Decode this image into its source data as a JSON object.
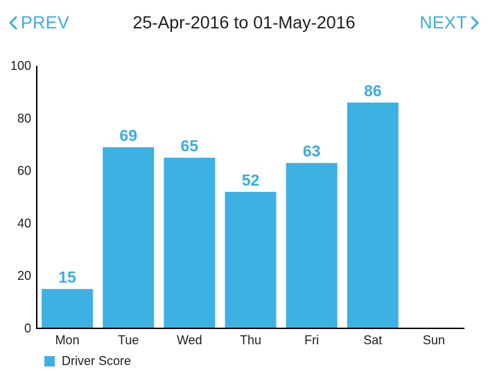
{
  "header": {
    "prev_label": "PREV",
    "next_label": "NEXT",
    "title": "25-Apr-2016 to 01-May-2016"
  },
  "colors": {
    "bar": "#3eb1e3",
    "value_label": "#3aace0",
    "accent": "#3aace0",
    "text": "#1f1f1f",
    "axis": "#000000"
  },
  "chart_data": {
    "type": "bar",
    "categories": [
      "Mon",
      "Tue",
      "Wed",
      "Thu",
      "Fri",
      "Sat",
      "Sun"
    ],
    "series": [
      {
        "name": "Driver Score",
        "values": [
          15,
          69,
          65,
          52,
          63,
          86,
          null
        ]
      }
    ],
    "data_labels": [
      "15",
      "69",
      "65",
      "52",
      "63",
      "86",
      ""
    ],
    "ylim": [
      0,
      100
    ],
    "yticks": [
      0,
      20,
      40,
      60,
      80,
      100
    ],
    "title": "",
    "xlabel": "",
    "ylabel": "",
    "grid": false,
    "legend_position": "bottom-left"
  }
}
